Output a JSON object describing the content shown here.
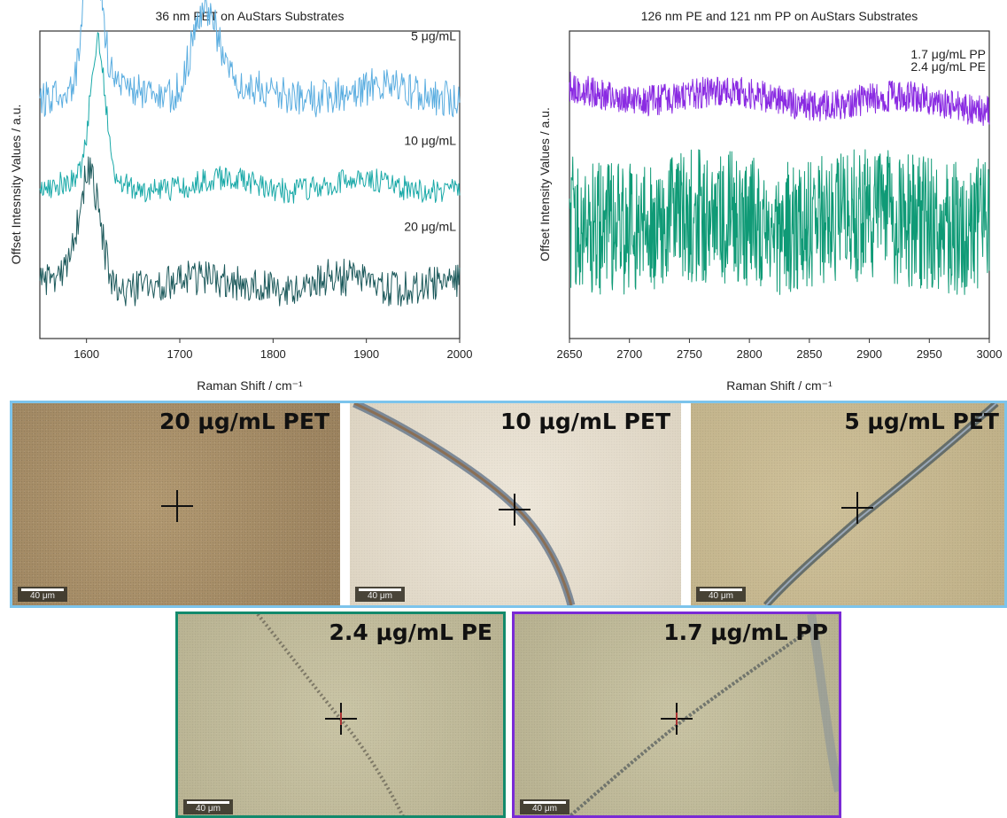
{
  "chart_data": [
    {
      "type": "line",
      "title": "36 nm PET on AuStars Substrates",
      "xlabel": "Raman Shift / cm⁻¹",
      "ylabel": "Offset Intesnsity Values / a.u.",
      "xlim": [
        1550,
        2000
      ],
      "xticks": [
        1600,
        1700,
        1800,
        1900,
        2000
      ],
      "yticks_shown": false,
      "series": [
        {
          "name": "5 μg/mL",
          "color": "#5aade0",
          "baseline": 0.8,
          "noise": 0.06,
          "peaks": [
            {
              "x": 1607,
              "height": 0.5,
              "width": 9
            },
            {
              "x": 1727,
              "height": 0.28,
              "width": 14
            }
          ]
        },
        {
          "name": "10 μg/mL",
          "color": "#1aa9a8",
          "baseline": 0.5,
          "noise": 0.04,
          "peaks": [
            {
              "x": 1612,
              "height": 0.45,
              "width": 8
            }
          ]
        },
        {
          "name": "20 μg/mL",
          "color": "#1d5a5c",
          "baseline": 0.18,
          "noise": 0.06,
          "peaks": [
            {
              "x": 1603,
              "height": 0.35,
              "width": 11
            }
          ]
        }
      ]
    },
    {
      "type": "line",
      "title": "126 nm PE and 121 nm PP on AuStars Substrates",
      "xlabel": "Raman Shift / cm⁻¹",
      "ylabel": "Offset Intensity Values / a.u.",
      "xlim": [
        2650,
        3000
      ],
      "xticks": [
        2650,
        2700,
        2750,
        2800,
        2850,
        2900,
        2950,
        3000
      ],
      "yticks_shown": false,
      "series": [
        {
          "name": "1.7 μg/mL PP",
          "color": "#8a2be2",
          "baseline": 0.8,
          "noise": 0.05,
          "slope": -0.04,
          "peaks": []
        },
        {
          "name": "2.4 μg/mL PE",
          "color": "#0f9a76",
          "baseline": 0.38,
          "noise": 0.22,
          "peaks": []
        }
      ]
    }
  ],
  "micrographs": [
    {
      "label": "20 μg/mL PET",
      "scale": "40 μm"
    },
    {
      "label": "10 μg/mL PET",
      "scale": "40 μm"
    },
    {
      "label": "5 μg/mL PET",
      "scale": "40 μm"
    },
    {
      "label": "2.4 μg/mL PE",
      "scale": "40 μm"
    },
    {
      "label": "1.7 μg/mL PP",
      "scale": "40 μm"
    }
  ],
  "colors": {
    "pet_frame": "#7cc4ec",
    "pe_frame": "#138a6c",
    "pp_frame": "#7a2ad6"
  }
}
